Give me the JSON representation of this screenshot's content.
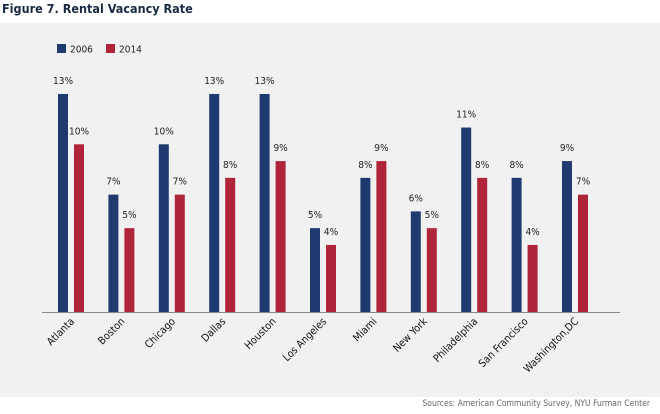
{
  "figure": {
    "title": "Figure 7. Rental Vacancy Rate",
    "source": "Sources: American Community Survey, NYU Furman Center"
  },
  "chart_data": {
    "type": "bar",
    "categories": [
      "Atlanta",
      "Boston",
      "Chicago",
      "Dallas",
      "Houston",
      "Los Angeles",
      "Miami",
      "New York",
      "Philadelphia",
      "San Francisco",
      "Washington,DC"
    ],
    "series": [
      {
        "name": "2006",
        "color": "#1f3a6e",
        "values": [
          13,
          7,
          10,
          13,
          13,
          5,
          8,
          6,
          11,
          8,
          9
        ]
      },
      {
        "name": "2014",
        "color": "#b0243a",
        "values": [
          10,
          5,
          7,
          8,
          9,
          4,
          9,
          5,
          8,
          4,
          7
        ]
      }
    ],
    "value_suffix": "%",
    "ylim": [
      0,
      13
    ],
    "grid": false,
    "legend": "top-left"
  }
}
